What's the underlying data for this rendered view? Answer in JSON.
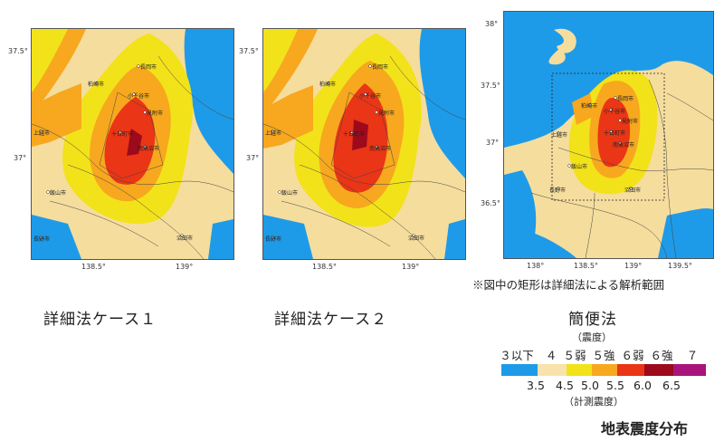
{
  "panels": [
    {
      "caption": "詳細法ケース１",
      "lat_ticks": [
        "37.5°",
        "37°"
      ],
      "lon_ticks": [
        "138.5°",
        "139°"
      ],
      "cities": [
        "長岡市",
        "柏崎市",
        "小千谷市",
        "見附市",
        "上越市",
        "十日町市",
        "南魚沼市",
        "飯山市",
        "長野市",
        "沼田市"
      ]
    },
    {
      "caption": "詳細法ケース２",
      "lat_ticks": [
        "37.5°",
        "37°"
      ],
      "lon_ticks": [
        "138.5°",
        "139°"
      ],
      "cities": [
        "長岡市",
        "柏崎市",
        "小千谷市",
        "見附市",
        "上越市",
        "十日町市",
        "南魚沼市",
        "飯山市",
        "長野市",
        "沼田市"
      ]
    },
    {
      "caption": "簡便法",
      "lat_ticks": [
        "38°",
        "37.5°",
        "37°",
        "36.5°"
      ],
      "lon_ticks": [
        "138°",
        "138.5°",
        "139°",
        "139.5°"
      ],
      "cities": [
        "長岡市",
        "柏崎市",
        "小千谷市",
        "見附市",
        "上越市",
        "十日町市",
        "南魚沼市",
        "飯山市",
        "長野市",
        "沼田市"
      ]
    }
  ],
  "note": "※図中の矩形は詳細法による解析範囲",
  "legend": {
    "intensity_title": "（震度）",
    "intensity_labels": [
      "３以下",
      "４",
      "５弱",
      "５強",
      "６弱",
      "６強",
      "７"
    ],
    "measured_values": [
      "3.5",
      "4.5",
      "5.0",
      "5.5",
      "6.0",
      "6.5"
    ],
    "measured_title": "（計測震度）",
    "colors": [
      "#1e9be8",
      "#f7e3ab",
      "#f2e21a",
      "#f7a81e",
      "#ea3516",
      "#9c0a1c",
      "#a8147c"
    ]
  },
  "map_title": "地表震度分布"
}
